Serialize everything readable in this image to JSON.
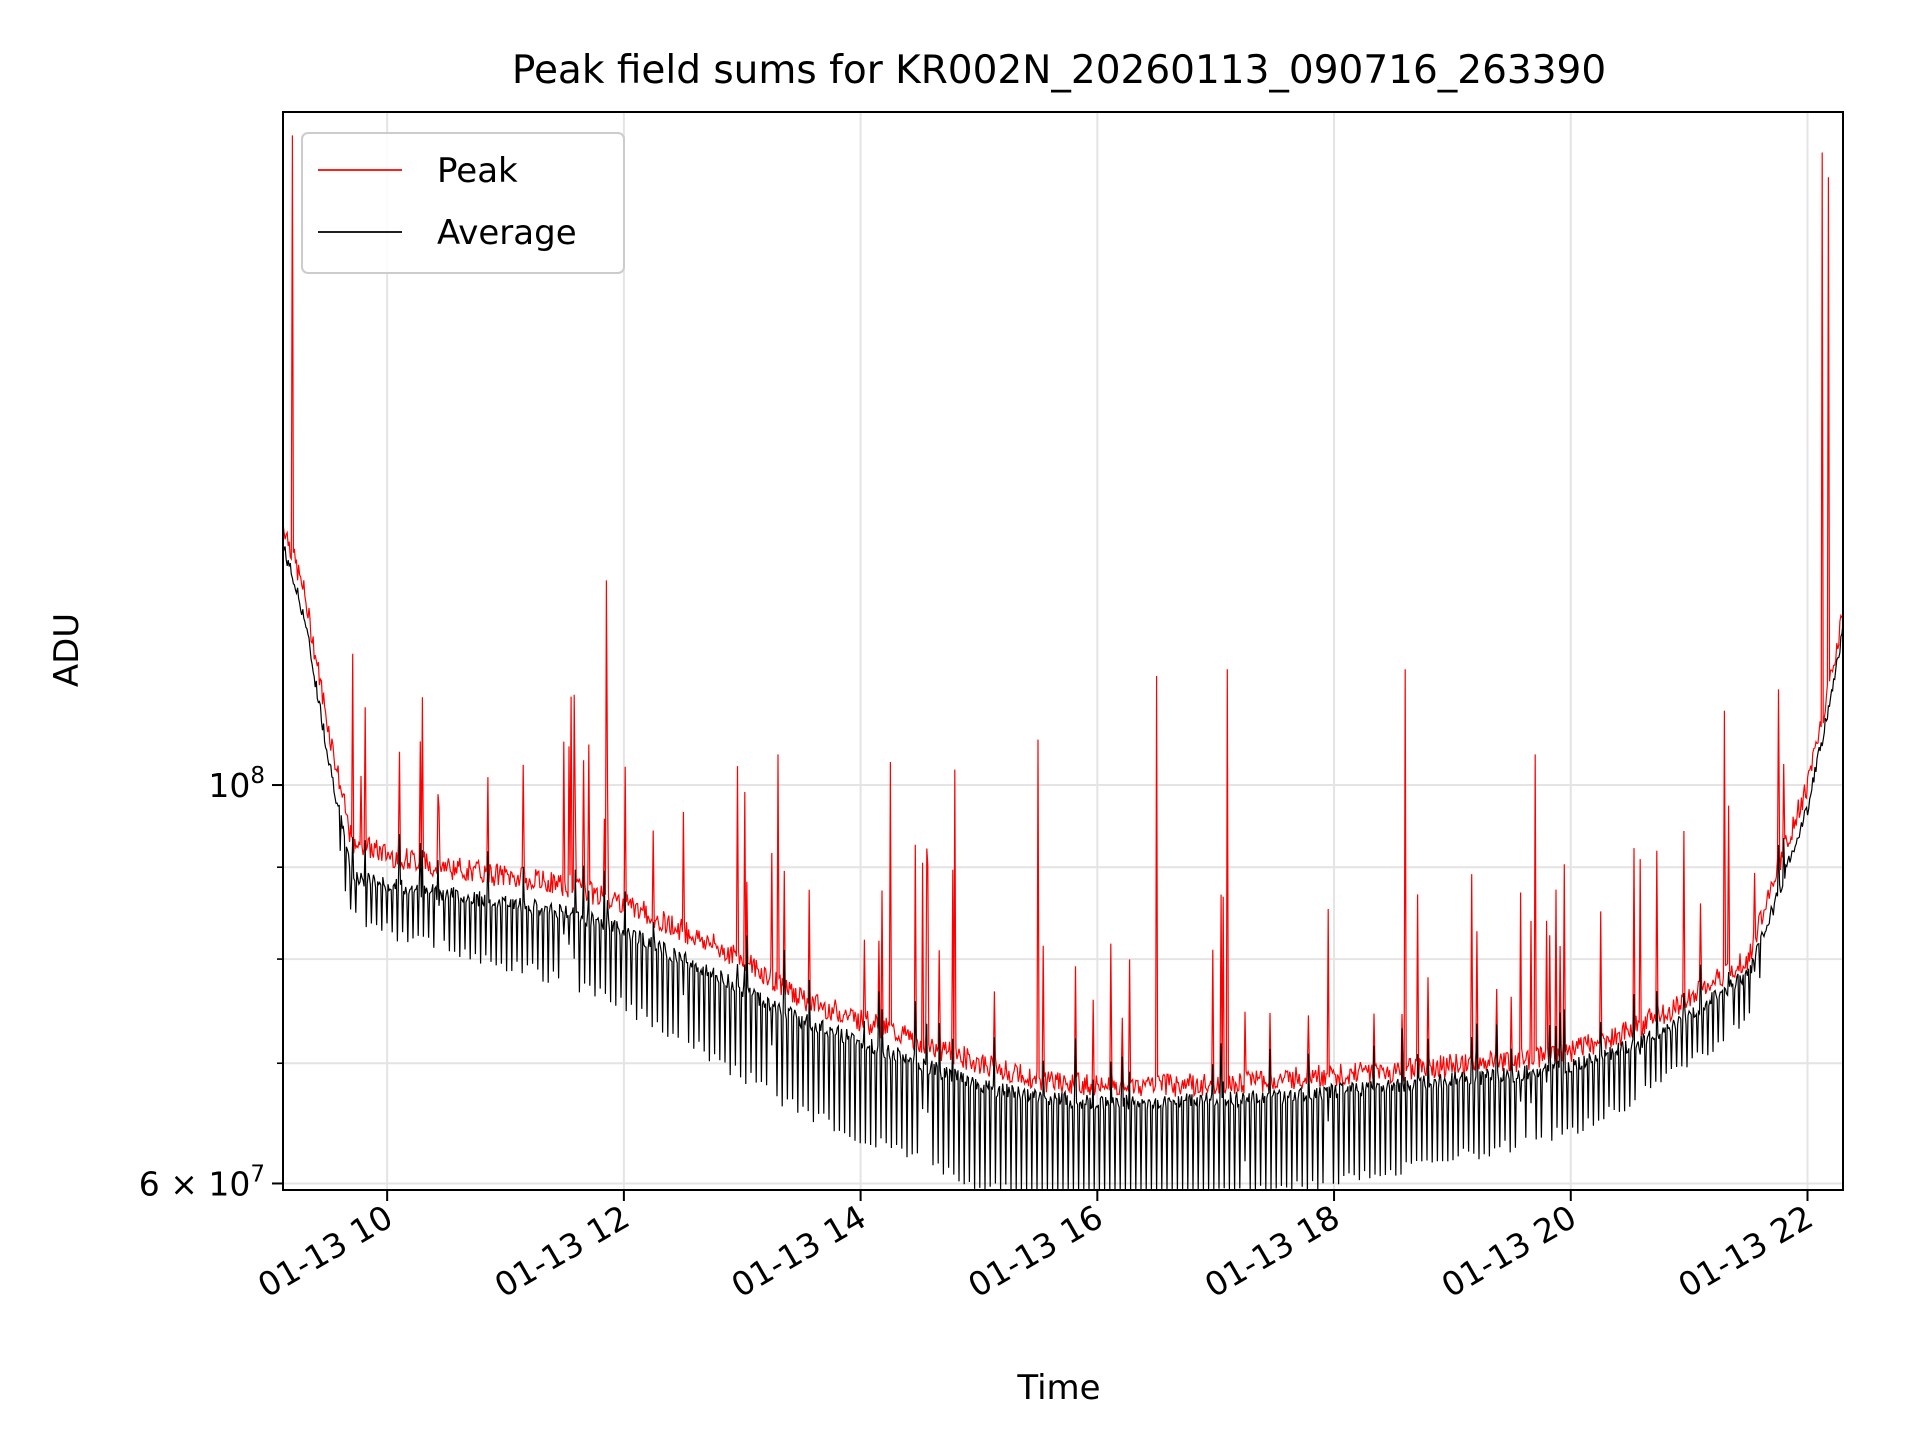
{
  "chart_data": {
    "type": "line",
    "title": "Peak field sums for KR002N_20260113_090716_263390",
    "xlabel": "Time",
    "ylabel": "ADU",
    "yscale": "log",
    "grid": true,
    "legend_placement": "top-left",
    "xlim_hours": [
      9.12,
      22.3
    ],
    "ylim": [
      59500000,
      237000000
    ],
    "x_ticks": [
      {
        "value": 10,
        "label": "01-13 10"
      },
      {
        "value": 12,
        "label": "01-13 12"
      },
      {
        "value": 14,
        "label": "01-13 14"
      },
      {
        "value": 16,
        "label": "01-13 16"
      },
      {
        "value": 18,
        "label": "01-13 18"
      },
      {
        "value": 20,
        "label": "01-13 20"
      },
      {
        "value": 22,
        "label": "01-13 22"
      }
    ],
    "y_major_ticks": [
      {
        "value": 60000000,
        "base": "6 × 10",
        "exp": "7"
      },
      {
        "value": 100000000,
        "base": "10",
        "exp": "8"
      }
    ],
    "y_minor_ticks": [
      70000000,
      80000000,
      90000000
    ],
    "baseline": {
      "x": [
        9.12,
        9.3,
        9.5,
        9.7,
        10.0,
        10.5,
        11.0,
        11.5,
        12.0,
        12.5,
        13.0,
        13.5,
        14.0,
        14.5,
        15.0,
        15.5,
        16.0,
        16.5,
        17.0,
        17.5,
        18.0,
        18.5,
        19.0,
        19.5,
        20.0,
        20.5,
        21.0,
        21.5,
        21.7,
        22.0,
        22.2,
        22.3
      ],
      "peak": [
        140000000,
        128000000,
        108000000,
        93000000,
        91500000,
        90000000,
        89000000,
        88000000,
        86000000,
        83000000,
        80000000,
        76000000,
        74000000,
        72000000,
        70000000,
        68500000,
        68000000,
        68000000,
        68200000,
        68500000,
        69000000,
        69300000,
        69800000,
        70200000,
        71000000,
        73000000,
        76000000,
        80000000,
        88000000,
        100000000,
        115000000,
        125000000
      ],
      "average": [
        136000000,
        124000000,
        104000000,
        89000000,
        88000000,
        87000000,
        86000000,
        85000000,
        83000000,
        80000000,
        77000000,
        74000000,
        72000000,
        70000000,
        68000000,
        67000000,
        66600000,
        66600000,
        66800000,
        67000000,
        67500000,
        68000000,
        68500000,
        69000000,
        69800000,
        71500000,
        74500000,
        78500000,
        85000000,
        97000000,
        112000000,
        122000000
      ]
    },
    "peak_spikes": [
      [
        9.2,
        230000000
      ],
      [
        11.55,
        112000000
      ],
      [
        11.85,
        130000000
      ],
      [
        13.3,
        104000000
      ],
      [
        14.25,
        103000000
      ],
      [
        14.8,
        102000000
      ],
      [
        15.5,
        106000000
      ],
      [
        16.5,
        115000000
      ],
      [
        17.1,
        116000000
      ],
      [
        18.6,
        116000000
      ],
      [
        19.7,
        104000000
      ],
      [
        21.3,
        110000000
      ],
      [
        22.12,
        225000000
      ],
      [
        22.18,
        218000000
      ]
    ],
    "series": [
      {
        "name": "Peak",
        "color": "#ff0000"
      },
      {
        "name": "Average",
        "color": "#000000"
      }
    ]
  }
}
